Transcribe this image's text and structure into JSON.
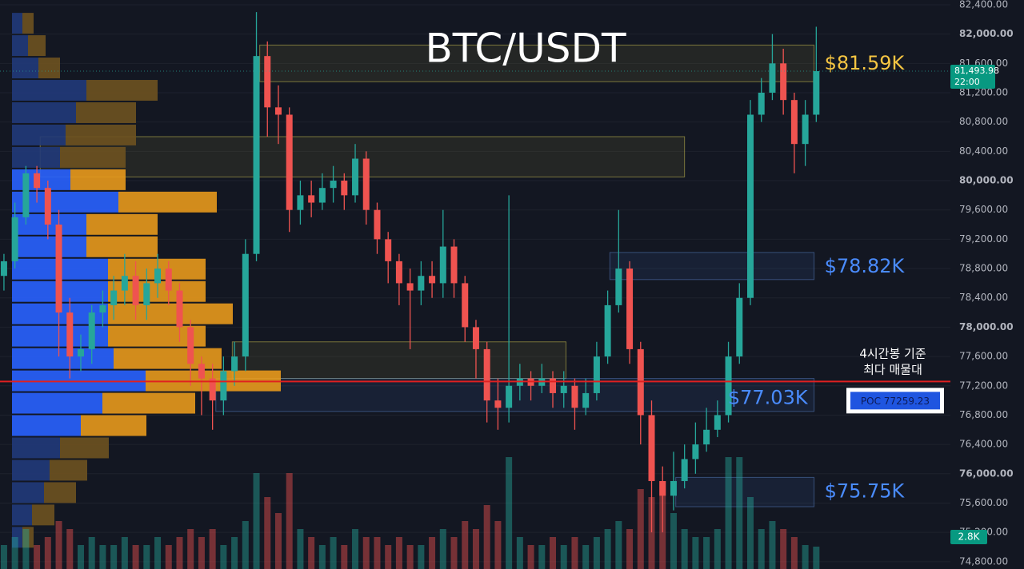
{
  "chart_data": {
    "type": "candlestick",
    "title": "BTC/USDT",
    "ylim": [
      74700,
      82465
    ],
    "xlim": [
      -0.36,
      86.22
    ],
    "yticks": [
      {
        "value": 74800,
        "label": "74,800.00"
      },
      {
        "value": 75200,
        "label": "75,200.00"
      },
      {
        "value": 75600,
        "label": "75,600.00"
      },
      {
        "value": 76000,
        "label": "76,000.00"
      },
      {
        "value": 76400,
        "label": "76,400.00"
      },
      {
        "value": 76800,
        "label": "76,800.00"
      },
      {
        "value": 77200,
        "label": "77,200.00"
      },
      {
        "value": 77600,
        "label": "77,600.00"
      },
      {
        "value": 78000,
        "label": "78,000.00"
      },
      {
        "value": 78400,
        "label": "78,400.00"
      },
      {
        "value": 78800,
        "label": "78,800.00"
      },
      {
        "value": 79200,
        "label": "79,200.00"
      },
      {
        "value": 79600,
        "label": "79,600.00"
      },
      {
        "value": 80000,
        "label": "80,000.00"
      },
      {
        "value": 80400,
        "label": "80,400.00"
      },
      {
        "value": 80800,
        "label": "80,800.00"
      },
      {
        "value": 81200,
        "label": "81,200.00"
      },
      {
        "value": 81600,
        "label": "81,600.00"
      },
      {
        "value": 82000,
        "label": "82,000.00"
      },
      {
        "value": 82400,
        "label": "82,400.00"
      }
    ],
    "grid": true,
    "up_color": "#26a69a",
    "down_color": "#ef5350",
    "open": [
      78700,
      78900,
      79500,
      80100,
      79900,
      79400,
      78200,
      77600,
      77700,
      78200,
      78300,
      78500,
      78700,
      78300,
      78600,
      78800,
      78500,
      78000,
      77500,
      77300,
      77000,
      77400,
      77600,
      79000,
      81700,
      81000,
      80900,
      79600,
      79800,
      79700,
      79900,
      80000,
      79800,
      80300,
      79600,
      79200,
      78900,
      78600,
      78500,
      78700,
      78600,
      79100,
      78600,
      78000,
      77700,
      77000,
      76900,
      77200,
      77300,
      77200,
      77300,
      77100,
      77200,
      76900,
      77100,
      77600,
      78300,
      78800,
      77700,
      76800,
      75900,
      75700,
      75900,
      76200,
      76400,
      76600,
      76800,
      77600,
      78400,
      80900,
      81200,
      81600,
      81100,
      80500,
      80900
    ],
    "high": [
      79000,
      79700,
      80200,
      80200,
      80000,
      79600,
      78400,
      77900,
      78300,
      78500,
      78700,
      79000,
      78900,
      78800,
      79000,
      78900,
      78600,
      78100,
      77600,
      77500,
      77600,
      77800,
      79200,
      82300,
      81900,
      81300,
      81000,
      80000,
      80000,
      80100,
      80200,
      80100,
      80500,
      80400,
      79700,
      79300,
      79000,
      78800,
      78900,
      78900,
      79600,
      79200,
      78700,
      78100,
      77800,
      77300,
      79800,
      77500,
      77400,
      77500,
      77400,
      77400,
      77300,
      77300,
      77800,
      78500,
      79600,
      78900,
      77800,
      77000,
      76100,
      76300,
      76400,
      76700,
      76900,
      77000,
      77800,
      78600,
      81100,
      81400,
      82000,
      81800,
      81200,
      81100,
      82100
    ],
    "low": [
      78500,
      78800,
      79400,
      79700,
      79200,
      77600,
      77300,
      77400,
      77500,
      78000,
      78100,
      78300,
      78100,
      78100,
      78400,
      78300,
      77800,
      77200,
      76800,
      76600,
      76800,
      77200,
      77400,
      78900,
      80600,
      80500,
      79300,
      79400,
      79500,
      79600,
      79700,
      79600,
      79700,
      79400,
      79000,
      78600,
      78300,
      77700,
      78300,
      78400,
      78400,
      78400,
      77800,
      77300,
      76700,
      76600,
      76700,
      77000,
      77000,
      77100,
      76900,
      76900,
      76600,
      76800,
      77000,
      77500,
      78200,
      77500,
      76400,
      75200,
      75200,
      75500,
      75800,
      76000,
      76300,
      76500,
      76700,
      77500,
      78300,
      80800,
      81100,
      80900,
      80100,
      80200,
      80800
    ],
    "close": [
      78900,
      79500,
      80100,
      79900,
      79400,
      78200,
      77600,
      77700,
      78200,
      78300,
      78500,
      78700,
      78300,
      78600,
      78800,
      78500,
      78000,
      77500,
      77300,
      77000,
      77400,
      77600,
      79000,
      81700,
      81000,
      80900,
      79600,
      79800,
      79700,
      79900,
      80000,
      79800,
      80300,
      79600,
      79200,
      78900,
      78600,
      78500,
      78700,
      78600,
      79100,
      78600,
      78000,
      77700,
      77000,
      76900,
      77200,
      77300,
      77200,
      77300,
      77100,
      77200,
      76900,
      77100,
      77600,
      78300,
      78800,
      77700,
      76800,
      75900,
      75700,
      75900,
      76200,
      76400,
      76600,
      76800,
      77600,
      78400,
      80900,
      81200,
      81600,
      81100,
      80500,
      80900,
      81493.98
    ],
    "volume": {
      "ylim": [
        0,
        71.2
      ],
      "values": [
        3,
        4,
        5,
        3,
        4,
        6,
        5,
        3,
        4,
        3,
        3,
        4,
        3,
        3,
        4,
        3,
        4,
        5,
        4,
        5,
        3,
        4,
        6,
        12,
        9,
        7,
        12,
        5,
        4,
        3,
        4,
        3,
        5,
        4,
        4,
        3,
        4,
        3,
        3,
        4,
        5,
        4,
        6,
        5,
        8,
        6,
        14,
        4,
        3,
        3,
        4,
        3,
        4,
        3,
        4,
        5,
        6,
        5,
        10,
        9,
        11,
        7,
        5,
        4,
        4,
        5,
        14,
        14,
        9,
        5,
        6,
        5,
        4,
        3,
        2.8
      ],
      "last_label": "2.8K"
    },
    "last_price": {
      "value": 81493.98,
      "label": "81,493.98",
      "time": "22:00"
    },
    "poc": {
      "value": 77259.23,
      "label": "POC  77259.23",
      "note": [
        "4시간봉 기준",
        "최다 매물대"
      ]
    },
    "zones": [
      {
        "low": 81350,
        "high": 81850,
        "start": 23.3,
        "end": 73.8,
        "color": "yellow",
        "label": "$81.59K",
        "label_value": 81590,
        "label_position": "right"
      },
      {
        "low": 80050,
        "high": 80600,
        "start": 3.3,
        "end": 62,
        "color": "yellow"
      },
      {
        "low": 78650,
        "high": 79020,
        "start": 55.2,
        "end": 73.8,
        "color": "blue",
        "label": "$78.82K",
        "label_value": 78820,
        "label_position": "right"
      },
      {
        "low": 77300,
        "high": 77800,
        "start": 20.8,
        "end": 51.2,
        "color": "yellow"
      },
      {
        "low": 76850,
        "high": 77300,
        "start": 19.3,
        "end": 73.8,
        "color": "blue",
        "label": "$77.03K",
        "label_value": 77030,
        "label_position": "inside"
      },
      {
        "low": 75550,
        "high": 75950,
        "start": 61.2,
        "end": 73.8,
        "color": "blue",
        "label": "$75.75K",
        "label_value": 75750,
        "label_position": "right"
      }
    ],
    "volume_profile": {
      "bins": [
        82300,
        81995,
        81690,
        81385,
        81080,
        80775,
        80470,
        80165,
        79860,
        79555,
        79250,
        78945,
        78640,
        78335,
        78030,
        77725,
        77420,
        77115,
        76810,
        76505,
        76200,
        75895,
        75590,
        75285,
        74980
      ],
      "buy": [
        13,
        20,
        33,
        93,
        80,
        67,
        60,
        73,
        133,
        93,
        93,
        120,
        120,
        120,
        120,
        127,
        167,
        113,
        86,
        60,
        47,
        40,
        25,
        13
      ],
      "sell": [
        14,
        22,
        27,
        89,
        75,
        88,
        82,
        69,
        123,
        89,
        89,
        122,
        122,
        156,
        122,
        135,
        169,
        116,
        82,
        61,
        47,
        40,
        28,
        14
      ],
      "value_area": [
        76505,
        80165
      ]
    }
  }
}
